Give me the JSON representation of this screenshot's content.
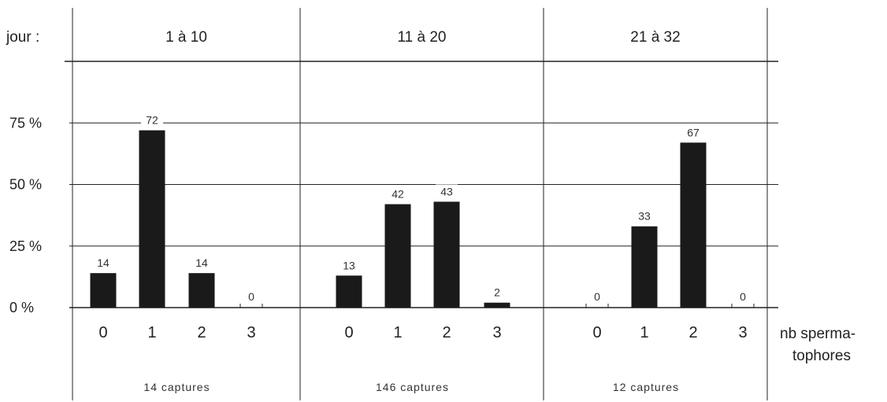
{
  "chart_data": {
    "type": "bar",
    "row_label": "jour :",
    "ylim": [
      0,
      100
    ],
    "yticks": [
      {
        "value": 0,
        "label": "0 %"
      },
      {
        "value": 25,
        "label": "25 %"
      },
      {
        "value": 50,
        "label": "50 %"
      },
      {
        "value": 75,
        "label": "75 %"
      }
    ],
    "categories": [
      "0",
      "1",
      "2",
      "3"
    ],
    "xlabel_lines": [
      "nb sperma-",
      "tophores"
    ],
    "grid": true,
    "bar_color": "#1a1a1a",
    "panels": [
      {
        "header": "1   à   10",
        "values": [
          14,
          72,
          14,
          0
        ],
        "labels": [
          "14",
          "72",
          "14",
          "0"
        ],
        "captures": "14   captures"
      },
      {
        "header": "11   à   20",
        "values": [
          13,
          42,
          43,
          2
        ],
        "labels": [
          "13",
          "42",
          "43",
          "2"
        ],
        "captures": "146   captures"
      },
      {
        "header": "21   à   32",
        "values": [
          0,
          33,
          67,
          0
        ],
        "labels": [
          "0",
          "33",
          "67",
          "0"
        ],
        "captures": "12   captures"
      }
    ]
  }
}
